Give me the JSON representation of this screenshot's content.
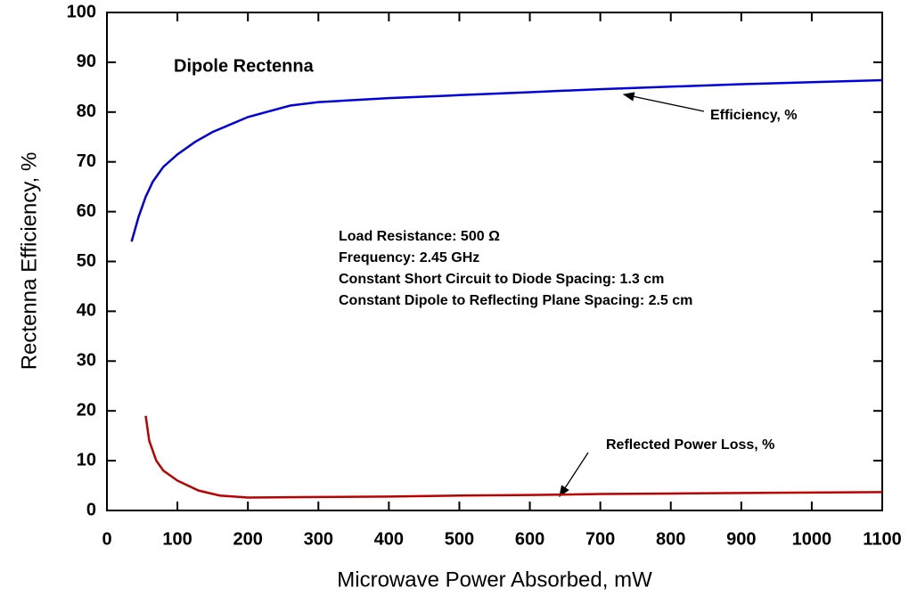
{
  "chart_data": {
    "type": "line",
    "title": "Dipole Rectenna",
    "x_label": "Microwave Power Absorbed, mW",
    "y_label": "Rectenna Efficiency, %",
    "annotations": [
      "Load Resistance:   500 Ω",
      "Frequency:   2.45 GHz",
      "Constant Short Circuit to Diode Spacing:    1.3 cm",
      "Constant Dipole to Reflecting Plane Spacing:   2.5 cm"
    ],
    "series": [
      {
        "name": "Efficiency, %",
        "color": "#0000dd",
        "x": [
          35,
          45,
          55,
          65,
          80,
          100,
          125,
          150,
          200,
          260,
          300,
          400,
          500,
          600,
          700,
          800,
          900,
          1000,
          1100
        ],
        "values": [
          54,
          59,
          63,
          66,
          69,
          71.5,
          74,
          76,
          79,
          81.3,
          82,
          82.8,
          83.4,
          84,
          84.6,
          85.1,
          85.6,
          86,
          86.4
        ]
      },
      {
        "name": "Reflected Power Loss, %",
        "color": "#bb0000",
        "x": [
          55,
          60,
          70,
          80,
          100,
          130,
          160,
          200,
          300,
          400,
          500,
          600,
          700,
          800,
          900,
          1000,
          1100
        ],
        "values": [
          19,
          14,
          10,
          8,
          6,
          4,
          3,
          2.6,
          2.7,
          2.8,
          3,
          3.1,
          3.3,
          3.4,
          3.5,
          3.6,
          3.7
        ]
      }
    ],
    "xlim": [
      0,
      1100
    ],
    "xticks": [
      0,
      100,
      200,
      300,
      400,
      500,
      600,
      700,
      800,
      900,
      1000,
      1100
    ],
    "ylim": [
      0,
      100
    ],
    "yticks": [
      0,
      10,
      20,
      30,
      40,
      50,
      60,
      70,
      80,
      90,
      100
    ]
  }
}
